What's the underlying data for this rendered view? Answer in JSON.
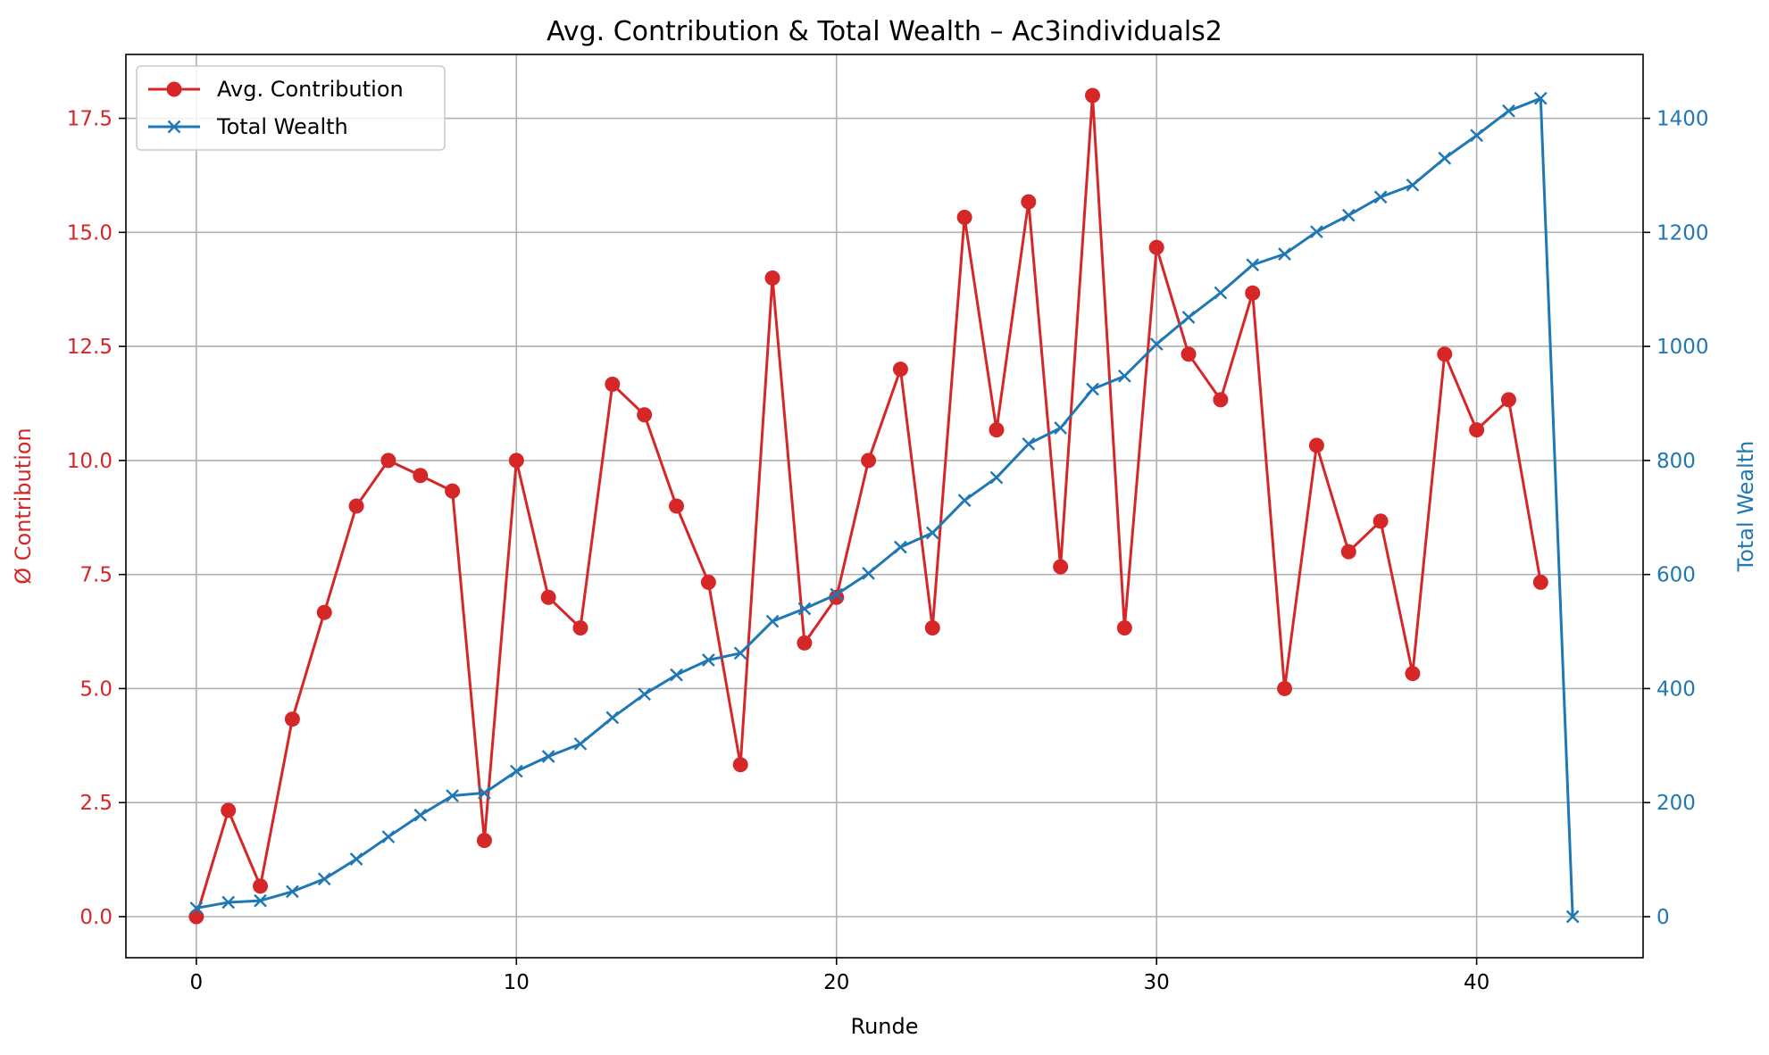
{
  "chart_data": {
    "type": "line",
    "title": "Avg. Contribution & Total Wealth – Ac3individuals2",
    "xlabel": "Runde",
    "ylabel_left": "Ø Contribution",
    "ylabel_right": "Total Wealth",
    "xlim": [
      -2.2,
      45.2
    ],
    "ylim_left": [
      -0.9,
      18.9
    ],
    "ylim_right": [
      -72,
      1512
    ],
    "x_ticks": [
      0,
      10,
      20,
      30,
      40
    ],
    "x_tick_labels": [
      "0",
      "10",
      "20",
      "30",
      "40"
    ],
    "y_left_ticks": [
      0,
      2.5,
      5,
      7.5,
      10,
      12.5,
      15,
      17.5
    ],
    "y_left_tick_labels": [
      "0.0",
      "2.5",
      "5.0",
      "7.5",
      "10.0",
      "12.5",
      "15.0",
      "17.5"
    ],
    "y_right_ticks": [
      0,
      200,
      400,
      600,
      800,
      1000,
      1200,
      1400
    ],
    "y_right_tick_labels": [
      "0",
      "200",
      "400",
      "600",
      "800",
      "1000",
      "1200",
      "1400"
    ],
    "grid": true,
    "legend_position": "top-left",
    "series": [
      {
        "name": "Avg. Contribution",
        "axis": "left",
        "color": "#d62728",
        "marker": "circle",
        "x": [
          0,
          1,
          2,
          3,
          4,
          5,
          6,
          7,
          8,
          9,
          10,
          11,
          12,
          13,
          14,
          15,
          16,
          17,
          18,
          19,
          20,
          21,
          22,
          23,
          24,
          25,
          26,
          27,
          28,
          29,
          30,
          31,
          32,
          33,
          34,
          35,
          36,
          37,
          38,
          39,
          40,
          41,
          42
        ],
        "values": [
          0.0,
          2.33,
          0.67,
          4.33,
          6.67,
          9.0,
          10.0,
          9.67,
          9.33,
          1.67,
          10.0,
          7.0,
          6.33,
          11.67,
          11.0,
          9.0,
          7.33,
          3.33,
          14.0,
          6.0,
          7.0,
          10.0,
          12.0,
          6.33,
          15.33,
          10.67,
          15.67,
          7.67,
          18.0,
          6.33,
          14.67,
          12.33,
          11.33,
          13.67,
          5.0,
          10.33,
          8.0,
          8.67,
          5.33,
          12.33,
          10.67,
          11.33,
          7.33
        ]
      },
      {
        "name": "Total Wealth",
        "axis": "right",
        "color": "#1f77b4",
        "marker": "x",
        "x": [
          0,
          1,
          2,
          3,
          4,
          5,
          6,
          7,
          8,
          9,
          10,
          11,
          12,
          13,
          14,
          15,
          16,
          17,
          18,
          19,
          20,
          21,
          22,
          23,
          24,
          25,
          26,
          27,
          28,
          29,
          30,
          31,
          32,
          33,
          34,
          35,
          36,
          37,
          38,
          39,
          40,
          41,
          42,
          43
        ],
        "values": [
          15,
          25,
          28,
          44,
          66,
          101,
          140,
          178,
          212,
          217,
          255,
          281,
          303,
          349,
          390,
          424,
          450,
          462,
          518,
          540,
          565,
          602,
          648,
          673,
          730,
          770,
          829,
          857,
          925,
          948,
          1004,
          1051,
          1094,
          1143,
          1162,
          1201,
          1230,
          1262,
          1283,
          1330,
          1370,
          1413,
          1435,
          0
        ]
      }
    ]
  }
}
